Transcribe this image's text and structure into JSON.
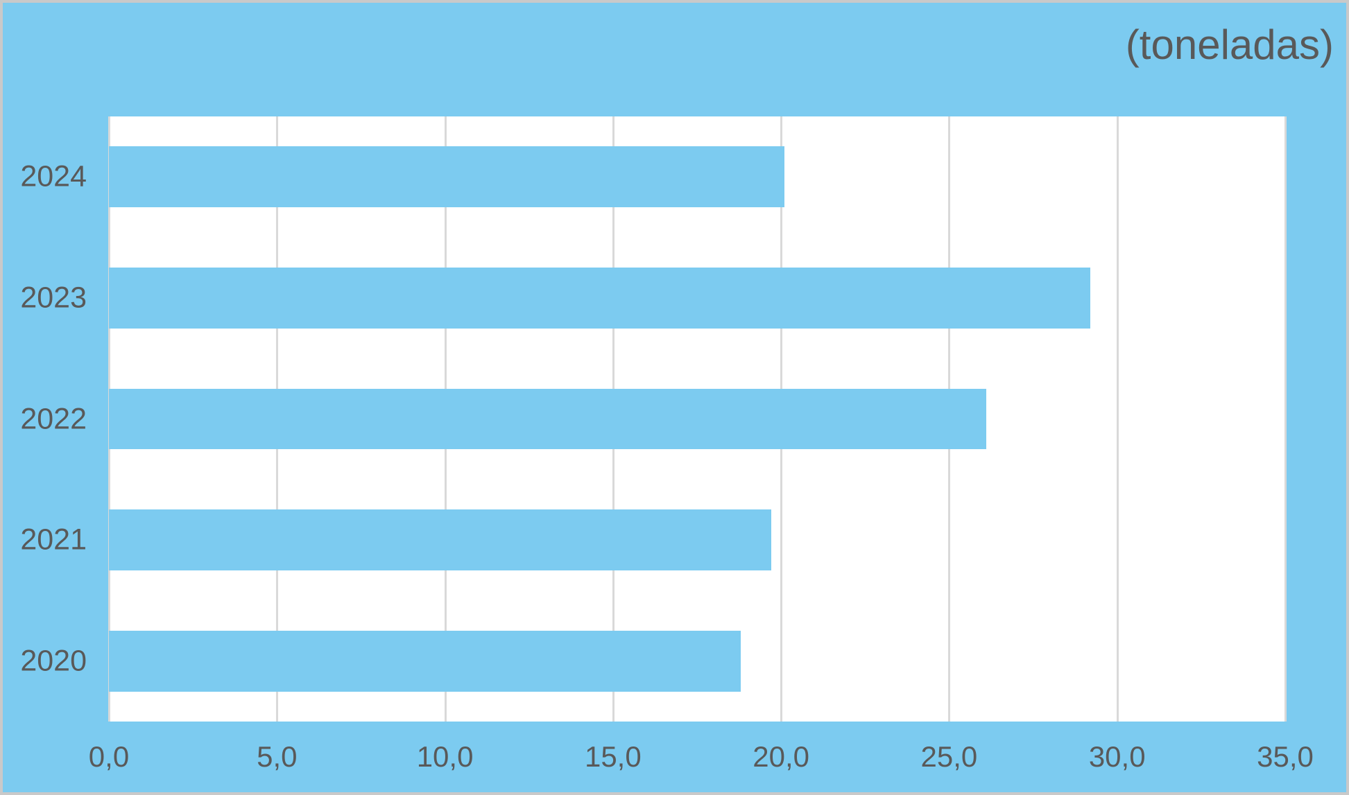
{
  "chart": {
    "title_label": "(toneladas)"
  },
  "chart_data": {
    "type": "bar",
    "orientation": "horizontal",
    "title": "(toneladas)",
    "xlabel": "",
    "ylabel": "",
    "categories": [
      "2024",
      "2023",
      "2022",
      "2021",
      "2020"
    ],
    "values": [
      20.1,
      29.2,
      26.1,
      19.7,
      18.8
    ],
    "xlim": [
      0,
      35
    ],
    "x_tick_values": [
      0,
      5,
      10,
      15,
      20,
      25,
      30,
      35
    ],
    "x_ticks": [
      "0,0",
      "5,0",
      "10,0",
      "15,0",
      "20,0",
      "25,0",
      "30,0",
      "35,0"
    ],
    "grid": true,
    "legend": false,
    "colors": {
      "bar": "#7ccbf0",
      "background": "#7ccbf0",
      "plot_background": "#ffffff",
      "gridline": "#d9d9d9",
      "text": "#595959",
      "frame_border": "#c9c9c9"
    }
  }
}
